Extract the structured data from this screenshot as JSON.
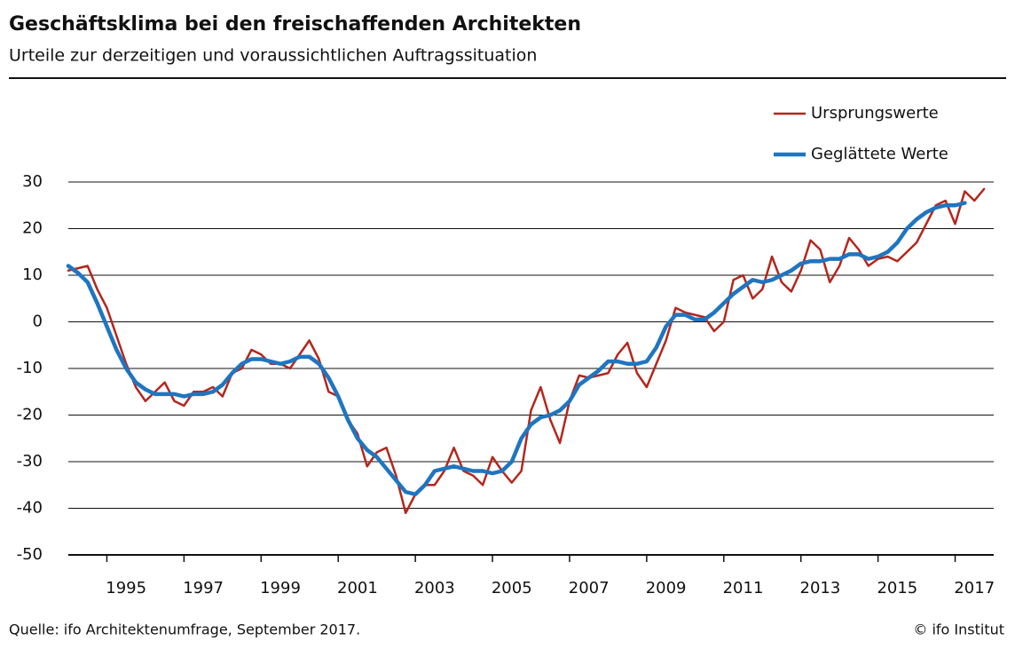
{
  "chart_data": {
    "type": "line",
    "title": "Geschäftsklima bei den freischaffenden Architekten",
    "subtitle": "Urteile zur derzeitigen und voraussichtlichen Auftragssituation",
    "source": "Quelle: ifo Architektenumfrage, September 2017.",
    "credit": "© ifo Institut",
    "legend": "top-right",
    "grid": true,
    "xlim": [
      1994,
      2018
    ],
    "ylim": [
      -50,
      30
    ],
    "yticks": [
      -50,
      -40,
      -30,
      -20,
      -10,
      0,
      10,
      20,
      30
    ],
    "xticks": [
      {
        "value": 1995.5,
        "label": "1995"
      },
      {
        "value": 1997.5,
        "label": "1997"
      },
      {
        "value": 1999.5,
        "label": "1999"
      },
      {
        "value": 2001.5,
        "label": "2001"
      },
      {
        "value": 2003.5,
        "label": "2003"
      },
      {
        "value": 2005.5,
        "label": "2005"
      },
      {
        "value": 2007.5,
        "label": "2007"
      },
      {
        "value": 2009.5,
        "label": "2009"
      },
      {
        "value": 2011.5,
        "label": "2011"
      },
      {
        "value": 2013.5,
        "label": "2013"
      },
      {
        "value": 2015.5,
        "label": "2015"
      },
      {
        "value": 2017.5,
        "label": "2017"
      }
    ],
    "xminorticks": [
      1995,
      1997,
      1999,
      2001,
      2003,
      2005,
      2007,
      2009,
      2011,
      2013,
      2015,
      2017
    ],
    "x": [
      1994.0,
      1994.25,
      1994.5,
      1994.75,
      1995.0,
      1995.25,
      1995.5,
      1995.75,
      1996.0,
      1996.25,
      1996.5,
      1996.75,
      1997.0,
      1997.25,
      1997.5,
      1997.75,
      1998.0,
      1998.25,
      1998.5,
      1998.75,
      1999.0,
      1999.25,
      1999.5,
      1999.75,
      2000.0,
      2000.25,
      2000.5,
      2000.75,
      2001.0,
      2001.25,
      2001.5,
      2001.75,
      2002.0,
      2002.25,
      2002.5,
      2002.75,
      2003.0,
      2003.25,
      2003.5,
      2003.75,
      2004.0,
      2004.25,
      2004.5,
      2004.75,
      2005.0,
      2005.25,
      2005.5,
      2005.75,
      2006.0,
      2006.25,
      2006.5,
      2006.75,
      2007.0,
      2007.25,
      2007.5,
      2007.75,
      2008.0,
      2008.25,
      2008.5,
      2008.75,
      2009.0,
      2009.25,
      2009.5,
      2009.75,
      2010.0,
      2010.25,
      2010.5,
      2010.75,
      2011.0,
      2011.25,
      2011.5,
      2011.75,
      2012.0,
      2012.25,
      2012.5,
      2012.75,
      2013.0,
      2013.25,
      2013.5,
      2013.75,
      2014.0,
      2014.25,
      2014.5,
      2014.75,
      2015.0,
      2015.25,
      2015.5,
      2015.75,
      2016.0,
      2016.25,
      2016.5,
      2016.75,
      2017.0,
      2017.25,
      2017.5,
      2017.75
    ],
    "series": [
      {
        "name": "Ursprungswerte",
        "color": "#b3271d",
        "width": 2.5,
        "values": [
          11,
          11.5,
          12,
          7,
          3,
          -3,
          -9,
          -14,
          -17,
          -15,
          -13,
          -17,
          -18,
          -15,
          -15,
          -14,
          -16,
          -11,
          -10,
          -6,
          -7,
          -9,
          -9,
          -10,
          -7,
          -4,
          -8,
          -15,
          -16,
          -21,
          -24,
          -31,
          -28,
          -27,
          -33,
          -41,
          -37,
          -35,
          -35,
          -32,
          -27,
          -32,
          -33,
          -35,
          -29,
          -32,
          -34.5,
          -32,
          -19,
          -14,
          -21,
          -26,
          -17,
          -11.5,
          -12,
          -11.5,
          -11,
          -7,
          -4.5,
          -11,
          -14,
          -9,
          -4,
          3,
          2,
          1.5,
          1,
          -2,
          0,
          9,
          10,
          5,
          7,
          14,
          8.5,
          6.5,
          11,
          17.5,
          15.5,
          8.5,
          12,
          18,
          15.5,
          12,
          13.5,
          14,
          13,
          15,
          17,
          21,
          25,
          26,
          21,
          28,
          26,
          28.5
        ]
      },
      {
        "name": "Geglättete Werte",
        "color": "#1f75c0",
        "width": 4.5,
        "values": [
          12,
          10.5,
          8.5,
          4,
          -1,
          -6,
          -10,
          -13,
          -14.5,
          -15.5,
          -15.5,
          -15.5,
          -16,
          -15.5,
          -15.5,
          -15,
          -13.5,
          -11,
          -9,
          -8,
          -8,
          -8.5,
          -9,
          -8.5,
          -7.5,
          -7.5,
          -9,
          -12,
          -16,
          -21,
          -25,
          -27.5,
          -29,
          -31.5,
          -34,
          -36.5,
          -37,
          -35,
          -32,
          -31.5,
          -31,
          -31.5,
          -32,
          -32,
          -32.5,
          -32,
          -30,
          -25,
          -22,
          -20.5,
          -20,
          -19,
          -17,
          -13.5,
          -12,
          -10.5,
          -8.5,
          -8.5,
          -9,
          -9,
          -8.5,
          -5.5,
          -1,
          1.5,
          1.5,
          0.5,
          0.5,
          2,
          4,
          6,
          7.5,
          9,
          8.5,
          9,
          10,
          11,
          12.5,
          13,
          13,
          13.5,
          13.5,
          14.5,
          14.5,
          13.5,
          14,
          15,
          17,
          20,
          22,
          23.5,
          24.5,
          25,
          25,
          25.5,
          null,
          null
        ]
      }
    ]
  }
}
